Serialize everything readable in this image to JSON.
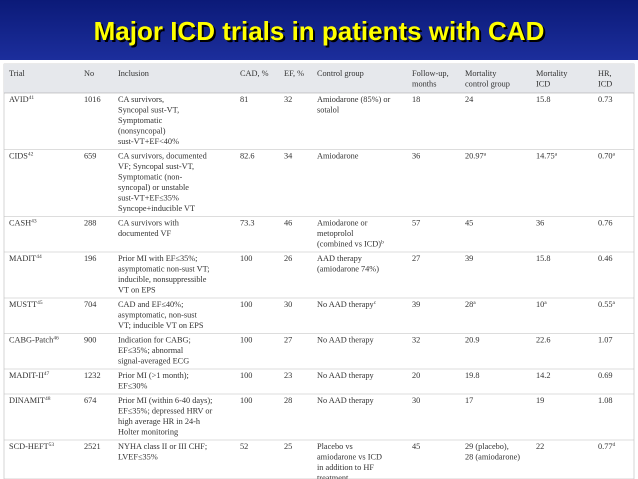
{
  "header": {
    "title": "Major ICD trials in patients with CAD"
  },
  "table": {
    "columns": [
      [
        "Trial"
      ],
      [
        "No"
      ],
      [
        "Inclusion"
      ],
      [
        "CAD, %"
      ],
      [
        "EF, %"
      ],
      [
        "Control group"
      ],
      [
        "Follow-up,",
        "months"
      ],
      [
        "Mortality",
        "control group"
      ],
      [
        "Mortality",
        "ICD"
      ],
      [
        "HR,",
        "ICD"
      ]
    ],
    "rows": [
      [
        {
          "lines": [
            "AVID"
          ],
          "sup": "41"
        },
        [
          "1016"
        ],
        [
          "CA survivors,",
          "Syncopal sust-VT,",
          "Symptomatic",
          "(nonsyncopal)",
          "sust-VT+EF<40%"
        ],
        [
          "81"
        ],
        [
          "32"
        ],
        [
          "Amiodarone (85%) or",
          "sotalol"
        ],
        [
          "18"
        ],
        [
          "24"
        ],
        [
          "15.8"
        ],
        [
          "0.73"
        ]
      ],
      [
        {
          "lines": [
            "CIDS"
          ],
          "sup": "42"
        },
        [
          "659"
        ],
        [
          "CA survivors, documented",
          "VF; Syncopal sust-VT,",
          "Symptomatic (non-",
          "syncopal) or unstable",
          "sust-VT+EF≤35%",
          "Syncope+inducible VT"
        ],
        [
          "82.6"
        ],
        [
          "34"
        ],
        [
          "Amiodarone"
        ],
        [
          "36"
        ],
        {
          "lines": [
            "20.97"
          ],
          "sup": "a"
        },
        {
          "lines": [
            "14.75"
          ],
          "sup": "a"
        },
        {
          "lines": [
            "0.70"
          ],
          "sup": "a"
        }
      ],
      [
        {
          "lines": [
            "CASH"
          ],
          "sup": "43"
        },
        [
          "288"
        ],
        [
          "CA survivors with",
          "documented VF"
        ],
        [
          "73.3"
        ],
        [
          "46"
        ],
        {
          "lines": [
            "Amiodarone or",
            "metoprolol",
            "(combined vs ICD)"
          ],
          "sup": "b"
        },
        [
          "57"
        ],
        [
          "45"
        ],
        [
          "36"
        ],
        [
          "0.76"
        ]
      ],
      [
        {
          "lines": [
            "MADIT"
          ],
          "sup": "44"
        },
        [
          "196"
        ],
        [
          "Prior MI with EF≤35%;",
          "asymptomatic non-sust VT;",
          "inducible, nonsuppressible",
          "VT on EPS"
        ],
        [
          "100"
        ],
        [
          "26"
        ],
        [
          "AAD therapy",
          "(amiodarone 74%)"
        ],
        [
          "27"
        ],
        [
          "39"
        ],
        [
          "15.8"
        ],
        [
          "0.46"
        ]
      ],
      [
        {
          "lines": [
            "MUSTT"
          ],
          "sup": "45"
        },
        [
          "704"
        ],
        [
          "CAD and EF≤40%;",
          "asymptomatic, non-sust",
          "VT; inducible VT on EPS"
        ],
        [
          "100"
        ],
        [
          "30"
        ],
        {
          "lines": [
            "No AAD therapy"
          ],
          "sup": "c"
        },
        [
          "39"
        ],
        {
          "lines": [
            "28"
          ],
          "sup": "a"
        },
        {
          "lines": [
            "10"
          ],
          "sup": "a"
        },
        {
          "lines": [
            "0.55"
          ],
          "sup": "a"
        }
      ],
      [
        {
          "lines": [
            "CABG-Patch"
          ],
          "sup": "46"
        },
        [
          "900"
        ],
        [
          "Indication for CABG;",
          "EF≤35%; abnormal",
          "signal-averaged ECG"
        ],
        [
          "100"
        ],
        [
          "27"
        ],
        [
          "No AAD therapy"
        ],
        [
          "32"
        ],
        [
          "20.9"
        ],
        [
          "22.6"
        ],
        [
          "1.07"
        ]
      ],
      [
        {
          "lines": [
            "MADIT-II"
          ],
          "sup": "47"
        },
        [
          "1232"
        ],
        [
          "Prior MI (>1 month);",
          "EF≤30%"
        ],
        [
          "100"
        ],
        [
          "23"
        ],
        [
          "No AAD therapy"
        ],
        [
          "20"
        ],
        [
          "19.8"
        ],
        [
          "14.2"
        ],
        [
          "0.69"
        ]
      ],
      [
        {
          "lines": [
            "DINAMIT"
          ],
          "sup": "48"
        },
        [
          "674"
        ],
        [
          "Prior MI (within 6-40 days);",
          "EF≤35%; depressed HRV or",
          "high average HR in 24-h",
          "Holter monitoring"
        ],
        [
          "100"
        ],
        [
          "28"
        ],
        [
          "No AAD therapy"
        ],
        [
          "30"
        ],
        [
          "17"
        ],
        [
          "19"
        ],
        [
          "1.08"
        ]
      ],
      [
        {
          "lines": [
            "SCD-HEFT"
          ],
          "sup": "53"
        },
        [
          "2521"
        ],
        [
          "NYHA class II or III CHF;",
          "LVEF≤35%"
        ],
        [
          "52"
        ],
        [
          "25"
        ],
        [
          "Placebo vs",
          "amiodarone vs ICD",
          "in addition to HF",
          "treatment"
        ],
        [
          "45"
        ],
        [
          "29 (placebo),",
          "28 (amiodarone)"
        ],
        [
          "22"
        ],
        {
          "lines": [
            "0.77"
          ],
          "sup": "d"
        }
      ]
    ]
  }
}
